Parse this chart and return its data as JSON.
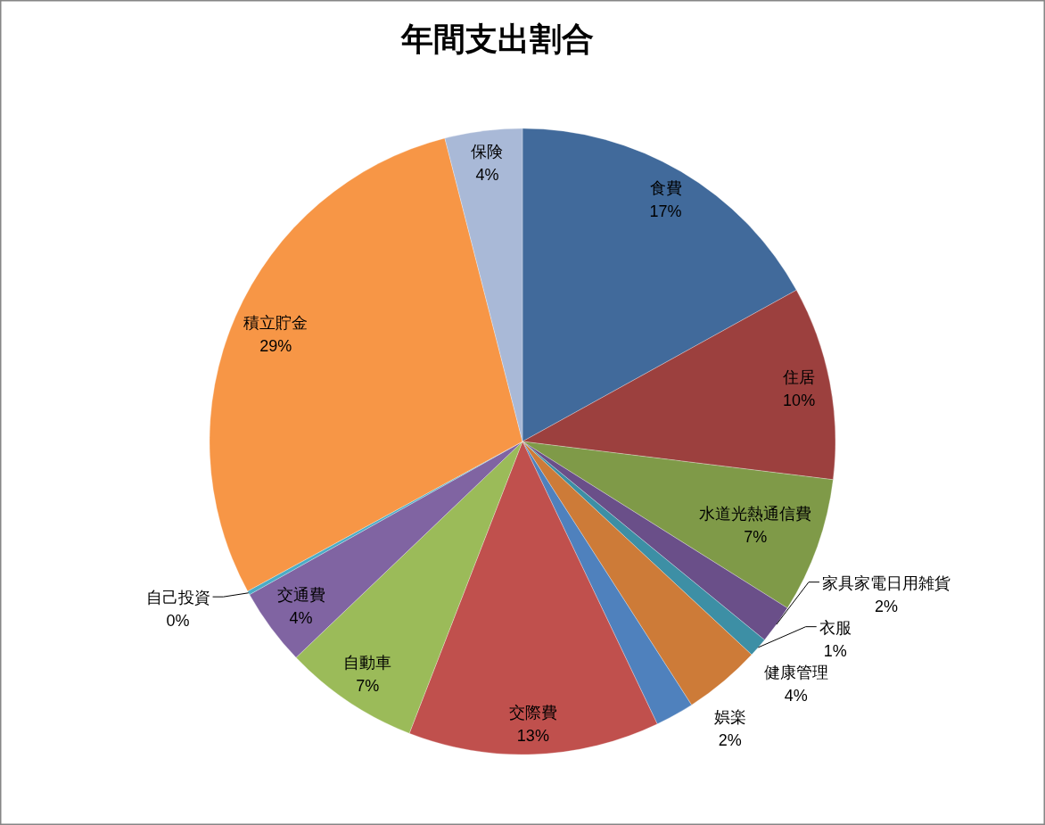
{
  "chart_data": {
    "type": "pie",
    "title": "年間支出割合",
    "categories": [
      "食費",
      "住居",
      "水道光熱通信費",
      "家具家電日用雑貨",
      "衣服",
      "健康管理",
      "娯楽",
      "交際費",
      "自動車",
      "交通費",
      "自己投資",
      "積立貯金",
      "保険"
    ],
    "values": [
      17,
      10,
      7,
      2,
      1,
      4,
      2,
      13,
      7,
      4,
      0.2,
      29,
      4
    ],
    "colors": [
      "#416a9b",
      "#9c403e",
      "#7f9a48",
      "#6a4f89",
      "#3d8fa5",
      "#cd7b38",
      "#4f81bd",
      "#c0504d",
      "#9bbb59",
      "#8064a2",
      "#4bacc6",
      "#f79646",
      "#a9b9d7"
    ],
    "value_labels": [
      "17%",
      "10%",
      "7%",
      "2%",
      "1%",
      "4%",
      "2%",
      "13%",
      "7%",
      "4%",
      "0%",
      "29%",
      "4%"
    ]
  }
}
